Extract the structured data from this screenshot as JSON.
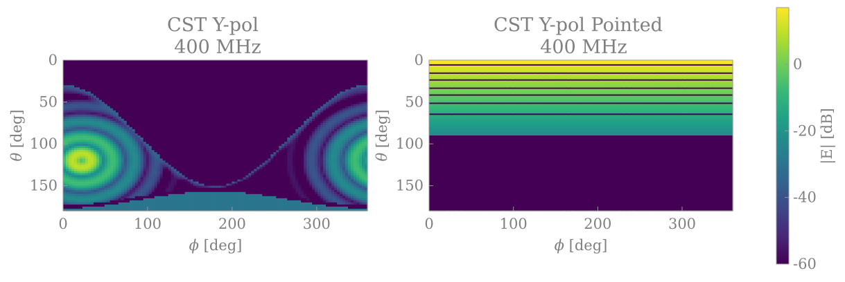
{
  "chart_data": [
    {
      "type": "heatmap",
      "title_line1": "CST Y-pol",
      "title_line2": "400 MHz",
      "xlabel_sym": "ϕ",
      "xlabel_unit": " [deg]",
      "ylabel_sym": "θ",
      "ylabel_unit": " [deg]",
      "xlim": [
        0,
        360
      ],
      "ylim": [
        180,
        0
      ],
      "xticks": [
        0,
        100,
        200,
        300
      ],
      "yticks": [
        0,
        50,
        100,
        150
      ],
      "pattern": "dipole-lobes",
      "hotspots": [
        {
          "phi": 22,
          "theta": 120,
          "value_db": 17
        }
      ],
      "zero_line_theta_min": 150
    },
    {
      "type": "heatmap",
      "title_line1": "CST Y-pol Pointed",
      "title_line2": "400 MHz",
      "xlabel_sym": "ϕ",
      "xlabel_unit": " [deg]",
      "ylabel_sym": "θ",
      "ylabel_unit": " [deg]",
      "xlim": [
        0,
        360
      ],
      "ylim": [
        180,
        0
      ],
      "xticks": [
        0,
        100,
        200,
        300
      ],
      "yticks": [
        0,
        50,
        100,
        150
      ],
      "pattern": "horizontal-bands",
      "band_edge_theta": 90,
      "nulls_theta": [
        6,
        15,
        24,
        33,
        42,
        52,
        64
      ]
    }
  ],
  "colorbar": {
    "label": "|E| [dB]",
    "vmin": -60,
    "vmax": 17,
    "ticks": [
      0,
      -20,
      -40,
      -60
    ],
    "colormap": "viridis",
    "stops": [
      "#440154",
      "#482878",
      "#3e4989",
      "#31688e",
      "#26828e",
      "#1f9e89",
      "#35b779",
      "#6ece58",
      "#b5de2b",
      "#fde725"
    ]
  }
}
